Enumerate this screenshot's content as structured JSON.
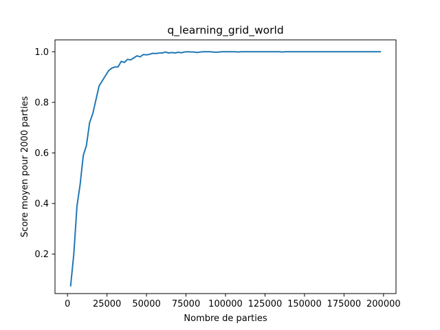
{
  "chart_data": {
    "type": "line",
    "title": "q_learning_grid_world",
    "xlabel": "Nombre de parties",
    "ylabel": "Score moyen pour 2000 parties",
    "xlim": [
      -7900,
      207900
    ],
    "ylim": [
      0.044,
      1.047
    ],
    "xticks": [
      0,
      25000,
      50000,
      75000,
      100000,
      125000,
      150000,
      175000,
      200000
    ],
    "yticks": [
      0.2,
      0.4,
      0.6,
      0.8,
      1.0
    ],
    "ytick_labels": [
      "0.2",
      "0.4",
      "0.6",
      "0.8",
      "1.0"
    ],
    "grid": false,
    "line_color": "#1f77b4",
    "series": [
      {
        "x": [
          2000,
          4000,
          6000,
          8000,
          10000,
          12000,
          14000,
          16000,
          18000,
          20000,
          22000,
          24000,
          26000,
          28000,
          30000,
          32000,
          34000,
          36000,
          38000,
          40000,
          42000,
          44000,
          46000,
          48000,
          50000,
          52000,
          54000,
          56000,
          58000,
          60000,
          62000,
          64000,
          66000,
          68000,
          70000,
          72000,
          74000,
          76000,
          78000,
          80000,
          82000,
          84000,
          86000,
          88000,
          90000,
          92000,
          94000,
          96000,
          98000,
          100000,
          102000,
          104000,
          106000,
          108000,
          110000,
          112000,
          114000,
          116000,
          118000,
          120000,
          122000,
          124000,
          126000,
          128000,
          130000,
          132000,
          134000,
          136000,
          138000,
          140000,
          142000,
          144000,
          146000,
          148000,
          150000,
          152000,
          154000,
          156000,
          158000,
          160000,
          162000,
          164000,
          166000,
          168000,
          170000,
          172000,
          174000,
          176000,
          178000,
          180000,
          182000,
          184000,
          186000,
          188000,
          190000,
          192000,
          194000,
          196000,
          198000
        ],
        "values": [
          0.075,
          0.2,
          0.39,
          0.475,
          0.59,
          0.63,
          0.72,
          0.755,
          0.81,
          0.865,
          0.885,
          0.905,
          0.925,
          0.935,
          0.94,
          0.94,
          0.962,
          0.958,
          0.97,
          0.968,
          0.976,
          0.984,
          0.98,
          0.989,
          0.988,
          0.99,
          0.994,
          0.993,
          0.995,
          0.995,
          0.999,
          0.995,
          0.997,
          0.995,
          0.998,
          0.996,
          0.999,
          1.0,
          0.999,
          0.999,
          0.997,
          0.999,
          1.0,
          1.0,
          1.0,
          0.999,
          0.998,
          0.999,
          1.0,
          1.0,
          1.0,
          1.0,
          1.0,
          0.999,
          1.0,
          1.0,
          1.0,
          1.0,
          1.0,
          1.0,
          1.0,
          1.0,
          1.0,
          1.0,
          1.0,
          1.0,
          1.0,
          0.999,
          1.0,
          1.0,
          1.0,
          1.0,
          1.0,
          1.0,
          1.0,
          1.0,
          1.0,
          1.0,
          1.0,
          1.0,
          1.0,
          1.0,
          1.0,
          1.0,
          1.0,
          1.0,
          1.0,
          1.0,
          1.0,
          1.0,
          1.0,
          1.0,
          1.0,
          1.0,
          1.0,
          1.0,
          1.0,
          1.0,
          1.0
        ]
      }
    ]
  }
}
